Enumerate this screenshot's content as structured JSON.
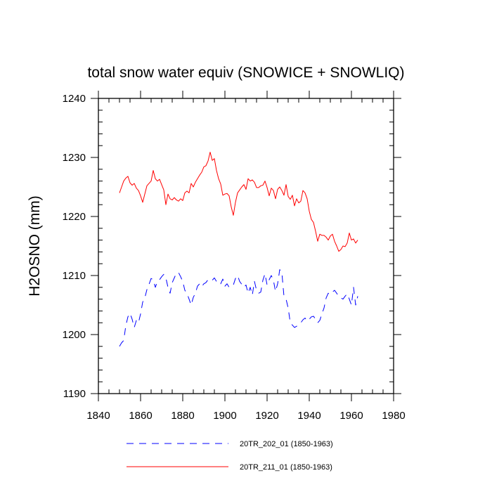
{
  "chart_data": {
    "type": "line",
    "title": "total snow water equiv (SNOWICE + SNOWLIQ)",
    "xlabel": "",
    "ylabel": "H2OSNO  (mm)",
    "xlim": [
      1840,
      1980
    ],
    "ylim": [
      1190,
      1240
    ],
    "x_ticks": [
      1840,
      1860,
      1880,
      1900,
      1920,
      1940,
      1960,
      1980
    ],
    "y_ticks": [
      1190,
      1200,
      1210,
      1220,
      1230,
      1240
    ],
    "x_minor_step": 5,
    "y_minor_step": 2,
    "grid": false,
    "legend_position": "bottom",
    "series": [
      {
        "name": "20TR_202_01 (1850-1963)",
        "color": "#0000ff",
        "style": "dashed",
        "x": [
          1850,
          1851,
          1852,
          1853,
          1854,
          1855,
          1856,
          1857,
          1858,
          1859,
          1860,
          1861,
          1862,
          1863,
          1864,
          1865,
          1866,
          1867,
          1868,
          1869,
          1870,
          1871,
          1872,
          1873,
          1874,
          1875,
          1876,
          1877,
          1878,
          1879,
          1880,
          1881,
          1882,
          1883,
          1884,
          1885,
          1886,
          1887,
          1888,
          1889,
          1890,
          1891,
          1892,
          1893,
          1894,
          1895,
          1896,
          1897,
          1898,
          1899,
          1900,
          1901,
          1902,
          1903,
          1904,
          1905,
          1906,
          1907,
          1908,
          1909,
          1910,
          1911,
          1912,
          1913,
          1914,
          1915,
          1916,
          1917,
          1918,
          1919,
          1920,
          1921,
          1922,
          1923,
          1924,
          1925,
          1926,
          1927,
          1928,
          1929,
          1930,
          1931,
          1932,
          1933,
          1934,
          1935,
          1936,
          1937,
          1938,
          1939,
          1940,
          1941,
          1942,
          1943,
          1944,
          1945,
          1946,
          1947,
          1948,
          1949,
          1950,
          1951,
          1952,
          1953,
          1954,
          1955,
          1956,
          1957,
          1958,
          1959,
          1960,
          1961,
          1962,
          1963
        ],
        "values": [
          1198.0,
          1198.6,
          1199.0,
          1201.5,
          1203.0,
          1203.6,
          1202.6,
          1201.2,
          1202.4,
          1202.0,
          1203.5,
          1205.5,
          1206.2,
          1207.6,
          1208.5,
          1209.5,
          1209.3,
          1208.0,
          1209.0,
          1209.3,
          1209.8,
          1210.2,
          1209.6,
          1208.0,
          1207.0,
          1208.8,
          1209.6,
          1210.4,
          1210.5,
          1209.8,
          1209.0,
          1207.5,
          1207.0,
          1206.0,
          1205.0,
          1206.3,
          1207.0,
          1208.2,
          1208.6,
          1208.1,
          1208.6,
          1208.8,
          1209.3,
          1209.4,
          1209.2,
          1209.6,
          1209.0,
          1208.5,
          1208.6,
          1209.4,
          1208.2,
          1208.6,
          1208.0,
          1208.2,
          1208.4,
          1209.5,
          1210.0,
          1209.0,
          1208.5,
          1208.0,
          1208.4,
          1207.0,
          1208.0,
          1206.7,
          1209.0,
          1207.5,
          1207.0,
          1207.2,
          1209.2,
          1210.3,
          1208.4,
          1209.3,
          1210.0,
          1209.2,
          1207.3,
          1208.6,
          1211.0,
          1210.5,
          1206.5,
          1206.0,
          1204.5,
          1202.0,
          1201.6,
          1201.2,
          1201.4,
          1201.7,
          1202.0,
          1202.5,
          1202.8,
          1202.3,
          1202.6,
          1203.0,
          1203.1,
          1202.6,
          1202.0,
          1202.4,
          1203.5,
          1204.5,
          1206.2,
          1207.0,
          1206.8,
          1207.2,
          1207.5,
          1207.0,
          1206.5,
          1206.2,
          1206.0,
          1206.5,
          1206.9,
          1206.0,
          1205.0,
          1208.0,
          1205.0,
          1206.5
        ]
      },
      {
        "name": "20TR_211_01 (1850-1963)",
        "color": "#ff0000",
        "style": "solid",
        "x": [
          1850,
          1851,
          1852,
          1853,
          1854,
          1855,
          1856,
          1857,
          1858,
          1859,
          1860,
          1861,
          1862,
          1863,
          1864,
          1865,
          1866,
          1867,
          1868,
          1869,
          1870,
          1871,
          1872,
          1873,
          1874,
          1875,
          1876,
          1877,
          1878,
          1879,
          1880,
          1881,
          1882,
          1883,
          1884,
          1885,
          1886,
          1887,
          1888,
          1889,
          1890,
          1891,
          1892,
          1893,
          1894,
          1895,
          1896,
          1897,
          1898,
          1899,
          1900,
          1901,
          1902,
          1903,
          1904,
          1905,
          1906,
          1907,
          1908,
          1909,
          1910,
          1911,
          1912,
          1913,
          1914,
          1915,
          1916,
          1917,
          1918,
          1919,
          1920,
          1921,
          1922,
          1923,
          1924,
          1925,
          1926,
          1927,
          1928,
          1929,
          1930,
          1931,
          1932,
          1933,
          1934,
          1935,
          1936,
          1937,
          1938,
          1939,
          1940,
          1941,
          1942,
          1943,
          1944,
          1945,
          1946,
          1947,
          1948,
          1949,
          1950,
          1951,
          1952,
          1953,
          1954,
          1955,
          1956,
          1957,
          1958,
          1959,
          1960,
          1961,
          1962,
          1963
        ],
        "values": [
          1224.0,
          1225.0,
          1226.0,
          1226.5,
          1226.8,
          1225.7,
          1225.3,
          1225.6,
          1224.8,
          1224.4,
          1223.5,
          1222.4,
          1223.8,
          1225.2,
          1225.6,
          1226.0,
          1227.8,
          1226.4,
          1226.0,
          1226.3,
          1225.4,
          1224.5,
          1222.0,
          1223.8,
          1223.0,
          1222.8,
          1223.2,
          1222.8,
          1222.6,
          1223.0,
          1222.7,
          1224.0,
          1224.3,
          1224.0,
          1225.6,
          1225.0,
          1225.8,
          1226.4,
          1227.0,
          1227.5,
          1228.4,
          1228.6,
          1229.4,
          1230.9,
          1229.5,
          1229.8,
          1227.8,
          1226.4,
          1225.5,
          1223.6,
          1223.8,
          1223.9,
          1223.5,
          1221.6,
          1220.2,
          1222.4,
          1224.0,
          1224.5,
          1225.0,
          1225.4,
          1224.6,
          1226.4,
          1226.0,
          1226.2,
          1225.8,
          1224.9,
          1224.9,
          1225.2,
          1225.3,
          1226.0,
          1224.9,
          1223.5,
          1224.8,
          1224.4,
          1223.0,
          1224.6,
          1225.0,
          1224.4,
          1223.6,
          1225.4,
          1223.4,
          1222.9,
          1223.6,
          1221.8,
          1223.0,
          1222.3,
          1222.6,
          1224.4,
          1224.0,
          1223.0,
          1220.9,
          1219.5,
          1219.0,
          1217.5,
          1215.8,
          1217.0,
          1216.8,
          1216.8,
          1216.5,
          1216.0,
          1216.7,
          1217.0,
          1215.8,
          1215.0,
          1214.1,
          1214.4,
          1215.0,
          1214.9,
          1215.5,
          1217.2,
          1216.0,
          1216.2,
          1215.5,
          1216.0
        ]
      }
    ]
  }
}
